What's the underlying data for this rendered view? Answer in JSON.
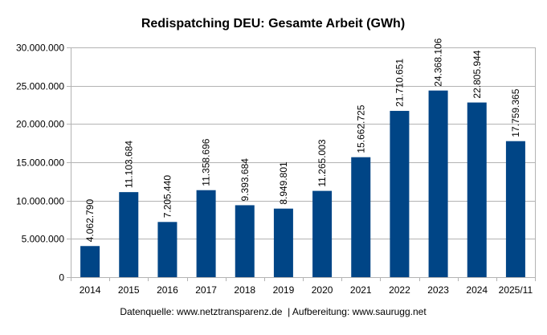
{
  "chart_data": {
    "type": "bar",
    "title": "Redispatching DEU: Gesamte Arbeit (GWh)",
    "xlabel": "",
    "ylabel": "",
    "categories": [
      "2014",
      "2015",
      "2016",
      "2017",
      "2018",
      "2019",
      "2020",
      "2021",
      "2022",
      "2023",
      "2024",
      "2025/11"
    ],
    "values": [
      4062790,
      11103684,
      7205440,
      11358696,
      9393684,
      8949801,
      11265003,
      15662725,
      21710651,
      24368106,
      22805944,
      17759365
    ],
    "data_labels": [
      "4.062.790",
      "11.103.684",
      "7.205.440",
      "11.358.696",
      "9.393.684",
      "8.949.801",
      "11.265.003",
      "15.662.725",
      "21.710.651",
      "24.368.106",
      "22.805.944",
      "17.759.365"
    ],
    "ylim": [
      0,
      30000000
    ],
    "yticks": [
      0,
      5000000,
      10000000,
      15000000,
      20000000,
      25000000,
      30000000
    ],
    "ytick_labels": [
      "0",
      "5.000.000",
      "10.000.000",
      "15.000.000",
      "20.000.000",
      "25.000.000",
      "30.000.000"
    ],
    "grid": true,
    "legend": "none",
    "bar_color": "#004586",
    "footer": "Datenquelle: www.netztransparenz.de  | Aufbereitung: www.saurugg.net"
  }
}
